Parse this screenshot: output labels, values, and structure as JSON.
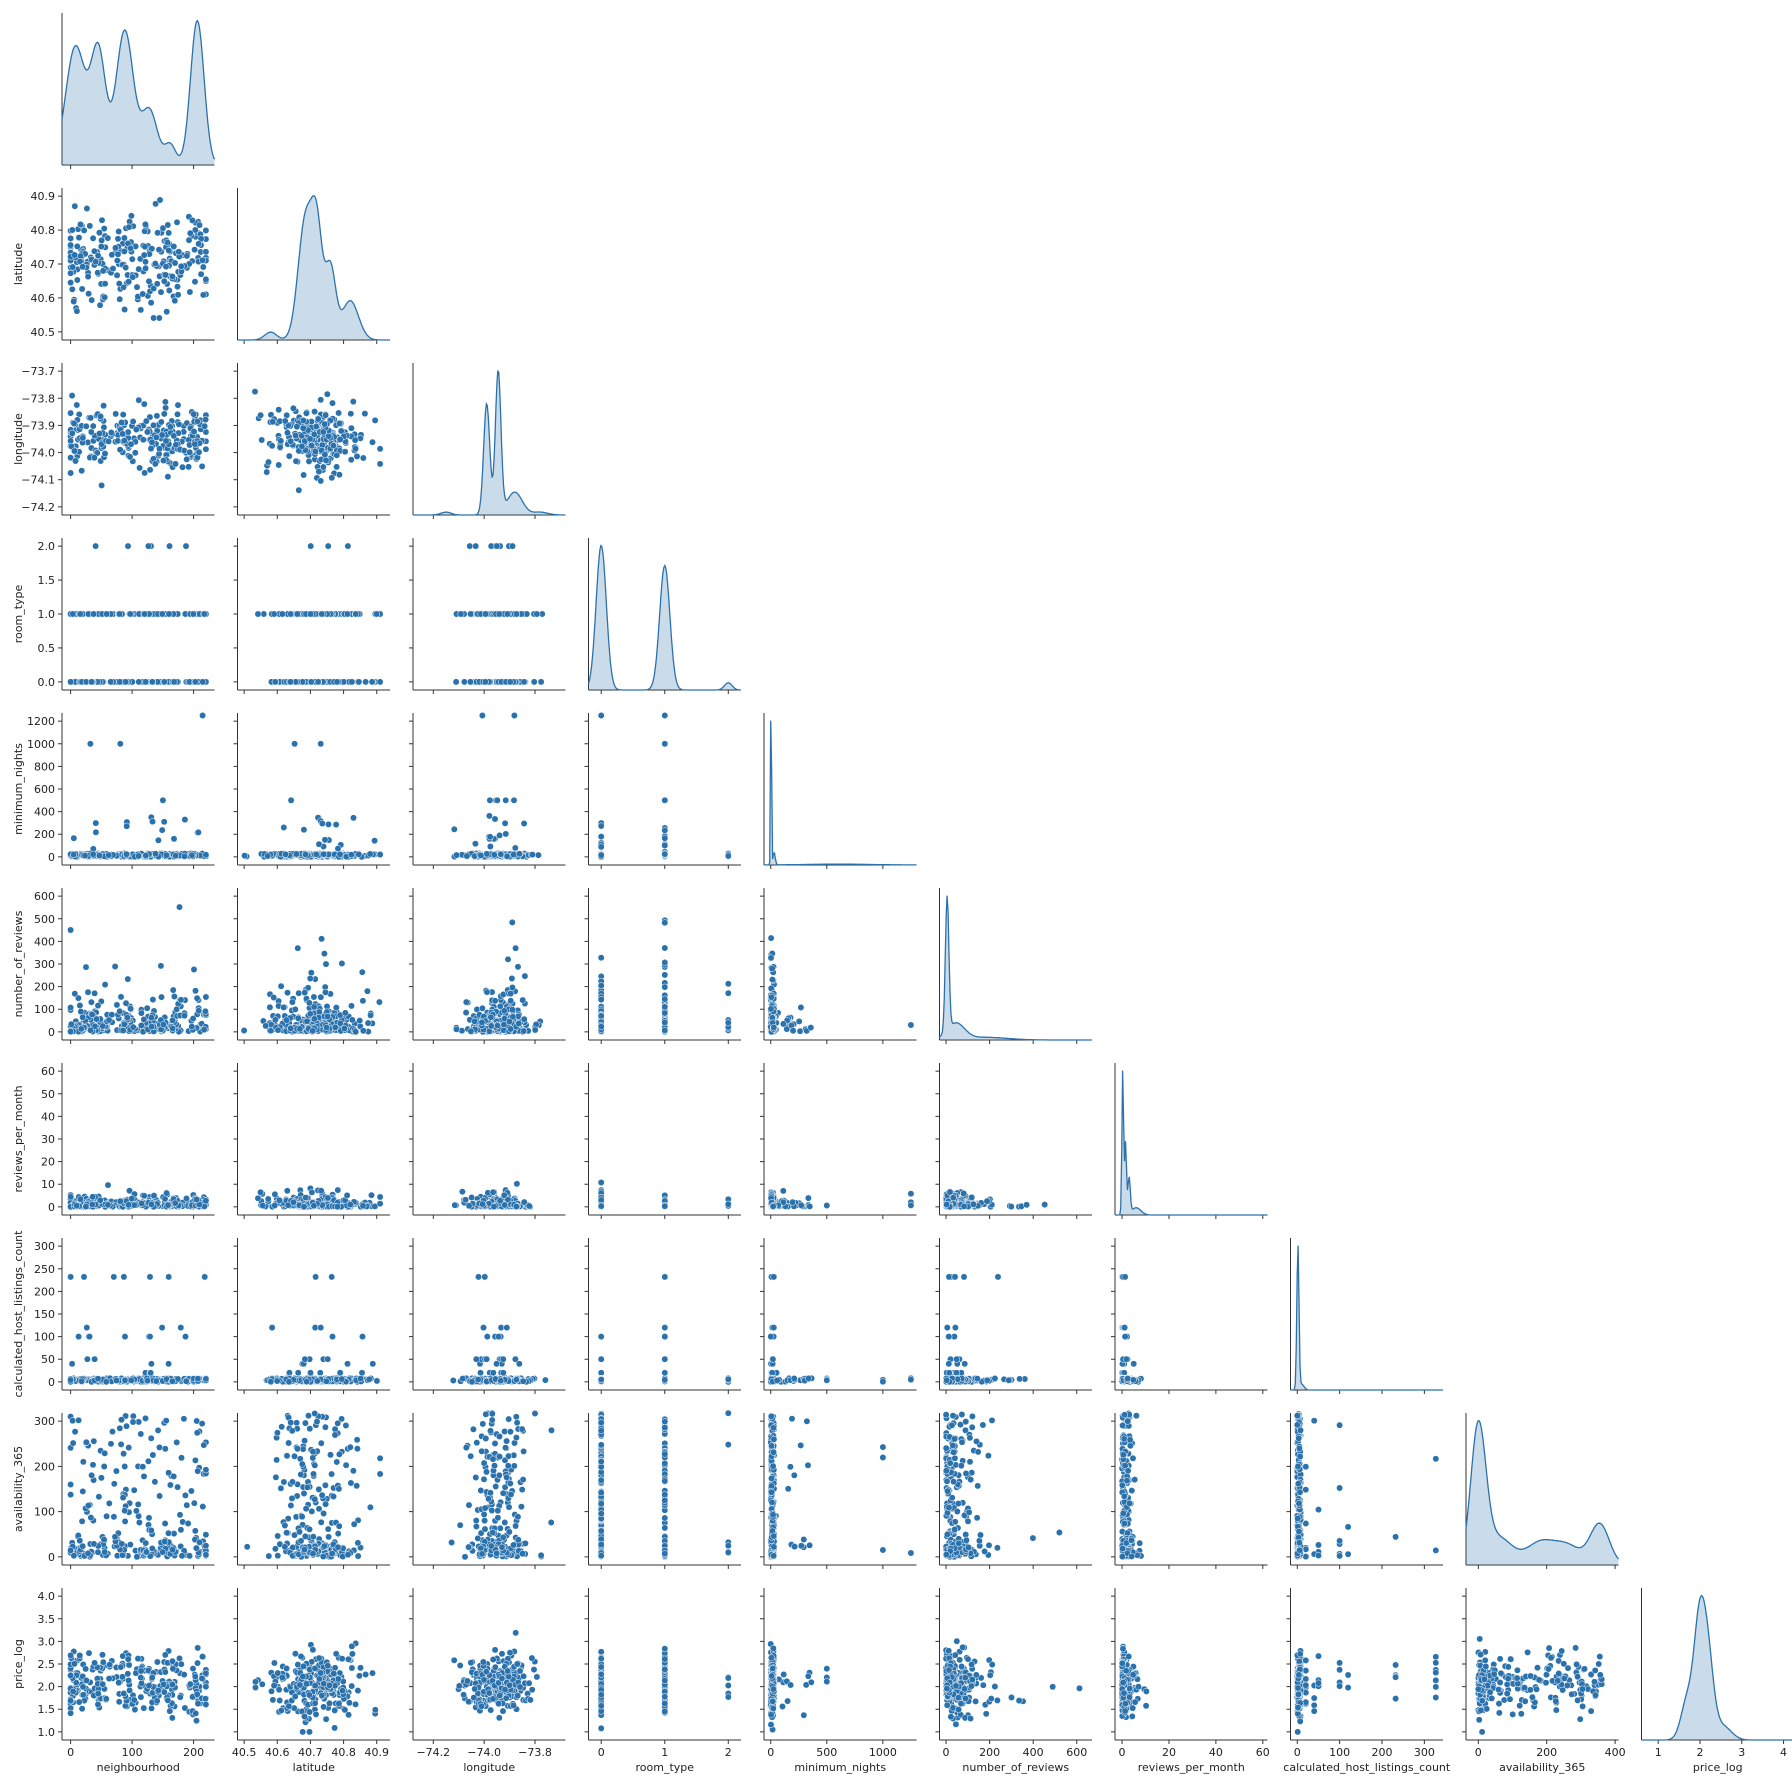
{
  "chart_data": {
    "type": "scatter",
    "kind": "pairplot-corner",
    "diagonal": "kde",
    "color": "#2b72ad",
    "variables": [
      {
        "name": "neighbourhood",
        "label": "neighbourhood",
        "range": [
          -14,
          234
        ],
        "ticks": [
          0,
          100,
          200
        ],
        "tick_labels": [
          "0",
          "100",
          "200"
        ]
      },
      {
        "name": "latitude",
        "label": "latitude",
        "range": [
          40.48,
          40.94
        ],
        "ticks": [
          40.5,
          40.6,
          40.7,
          40.8,
          40.9
        ],
        "tick_labels": [
          "40.5",
          "40.6",
          "40.7",
          "40.8",
          "40.9"
        ]
      },
      {
        "name": "longitude",
        "label": "longitude",
        "range": [
          -74.28,
          -73.68
        ],
        "ticks": [
          -74.2,
          -74.0,
          -73.8
        ],
        "tick_labels": [
          "−74.2",
          "−74.0",
          "−73.8"
        ]
      },
      {
        "name": "room_type",
        "label": "room_type",
        "range": [
          -0.2,
          2.2
        ],
        "ticks": [
          0,
          1,
          2
        ],
        "tick_labels": [
          "0",
          "1",
          "2"
        ]
      },
      {
        "name": "minimum_nights",
        "label": "minimum_nights",
        "range": [
          -60,
          1300
        ],
        "ticks": [
          0,
          500,
          1000
        ],
        "tick_labels": [
          "0",
          "500",
          "1000"
        ]
      },
      {
        "name": "number_of_reviews",
        "label": "number_of_reviews",
        "range": [
          -30,
          670
        ],
        "ticks": [
          0,
          200,
          400,
          600
        ],
        "tick_labels": [
          "0",
          "200",
          "400",
          "600"
        ]
      },
      {
        "name": "reviews_per_month",
        "label": "reviews_per_month",
        "range": [
          -3,
          62
        ],
        "ticks": [
          0,
          20,
          40,
          60
        ],
        "tick_labels": [
          "0",
          "20",
          "40",
          "60"
        ]
      },
      {
        "name": "calculated_host_listings_count",
        "label": "calculated_host_listings_count",
        "range": [
          -16,
          344
        ],
        "ticks": [
          0,
          100,
          200,
          300
        ],
        "tick_labels": [
          "0",
          "100",
          "200",
          "300"
        ]
      },
      {
        "name": "availability_365",
        "label": "availability_365",
        "range": [
          -36,
          410
        ],
        "ticks": [
          0,
          200,
          400
        ],
        "tick_labels": [
          "0",
          "200",
          "400"
        ]
      },
      {
        "name": "price_log",
        "label": "price_log",
        "range": [
          0.6,
          4.25
        ],
        "ticks": [
          1,
          2,
          3,
          4
        ],
        "tick_labels": [
          "1",
          "2",
          "3",
          "4"
        ]
      }
    ],
    "y_axes": [
      {
        "row": 1,
        "ticks": [
          40.5,
          40.6,
          40.7,
          40.8,
          40.9
        ],
        "tick_labels": [
          "40.5",
          "40.6",
          "40.7",
          "40.8",
          "40.9"
        ]
      },
      {
        "row": 2,
        "ticks": [
          -74.2,
          -74.1,
          -74.0,
          -73.9,
          -73.8,
          -73.7
        ],
        "tick_labels": [
          "−74.2",
          "−74.1",
          "−74.0",
          "−73.9",
          "−73.8",
          "−73.7"
        ]
      },
      {
        "row": 3,
        "ticks": [
          0.0,
          0.5,
          1.0,
          1.5,
          2.0
        ],
        "tick_labels": [
          "0.0",
          "0.5",
          "1.0",
          "1.5",
          "2.0"
        ]
      },
      {
        "row": 4,
        "ticks": [
          0,
          200,
          400,
          600,
          800,
          1000,
          1200
        ],
        "tick_labels": [
          "0",
          "200",
          "400",
          "600",
          "800",
          "1000",
          "1200"
        ]
      },
      {
        "row": 5,
        "ticks": [
          0,
          100,
          200,
          300,
          400,
          500,
          600
        ],
        "tick_labels": [
          "0",
          "100",
          "200",
          "300",
          "400",
          "500",
          "600"
        ]
      },
      {
        "row": 6,
        "ticks": [
          0,
          10,
          20,
          30,
          40,
          50,
          60
        ],
        "tick_labels": [
          "0",
          "10",
          "20",
          "30",
          "40",
          "50",
          "60"
        ]
      },
      {
        "row": 7,
        "ticks": [
          0,
          50,
          100,
          150,
          200,
          250,
          300
        ],
        "tick_labels": [
          "0",
          "50",
          "100",
          "150",
          "200",
          "250",
          "300"
        ]
      },
      {
        "row": 8,
        "ticks": [
          0,
          100,
          200,
          300
        ],
        "tick_labels": [
          "0",
          "100",
          "200",
          "300"
        ]
      },
      {
        "row": 9,
        "ticks": [
          1.0,
          1.5,
          2.0,
          2.5,
          3.0,
          3.5,
          4.0
        ],
        "tick_labels": [
          "1.0",
          "1.5",
          "2.0",
          "2.5",
          "3.0",
          "3.5",
          "4.0"
        ]
      }
    ],
    "kde": [
      {
        "var": "neighbourhood",
        "peaks": [
          [
            8,
            16,
            0.82
          ],
          [
            45,
            12,
            0.78
          ],
          [
            88,
            14,
            0.93
          ],
          [
            128,
            13,
            0.38
          ],
          [
            162,
            9,
            0.14
          ],
          [
            206,
            11,
            1.0
          ]
        ]
      },
      {
        "var": "latitude",
        "peaks": [
          [
            40.685,
            0.022,
            0.92
          ],
          [
            40.72,
            0.016,
            0.75
          ],
          [
            40.76,
            0.016,
            0.55
          ],
          [
            40.82,
            0.025,
            0.3
          ],
          [
            40.58,
            0.018,
            0.06
          ]
        ]
      },
      {
        "var": "longitude",
        "peaks": [
          [
            -73.99,
            0.012,
            0.78
          ],
          [
            -73.945,
            0.011,
            1.0
          ],
          [
            -73.88,
            0.03,
            0.16
          ],
          [
            -74.15,
            0.02,
            0.02
          ],
          [
            -73.78,
            0.03,
            0.02
          ]
        ]
      },
      {
        "var": "room_type",
        "peaks": [
          [
            0,
            0.08,
            1.0
          ],
          [
            1,
            0.08,
            0.86
          ],
          [
            2,
            0.06,
            0.05
          ]
        ]
      },
      {
        "var": "minimum_nights",
        "peaks": [
          [
            3,
            4,
            1.0
          ],
          [
            30,
            10,
            0.06
          ],
          [
            600,
            300,
            0.004
          ]
        ]
      },
      {
        "var": "number_of_reviews",
        "peaks": [
          [
            5,
            8,
            1.0
          ],
          [
            45,
            40,
            0.12
          ],
          [
            180,
            100,
            0.02
          ]
        ]
      },
      {
        "var": "reviews_per_month",
        "peaks": [
          [
            0.3,
            0.35,
            1.0
          ],
          [
            1.5,
            0.4,
            0.5
          ],
          [
            3,
            0.5,
            0.25
          ],
          [
            6,
            2,
            0.05
          ]
        ]
      },
      {
        "var": "calculated_host_listings_count",
        "peaks": [
          [
            1.5,
            2.5,
            1.0
          ],
          [
            10,
            6,
            0.04
          ]
        ]
      },
      {
        "var": "availability_365",
        "peaks": [
          [
            0,
            22,
            1.0
          ],
          [
            60,
            40,
            0.2
          ],
          [
            180,
            40,
            0.16
          ],
          [
            260,
            40,
            0.14
          ],
          [
            355,
            28,
            0.3
          ]
        ]
      },
      {
        "var": "price_log",
        "peaks": [
          [
            1.98,
            0.13,
            0.88
          ],
          [
            2.18,
            0.14,
            0.72
          ],
          [
            1.7,
            0.15,
            0.35
          ],
          [
            2.55,
            0.2,
            0.12
          ]
        ]
      }
    ]
  }
}
